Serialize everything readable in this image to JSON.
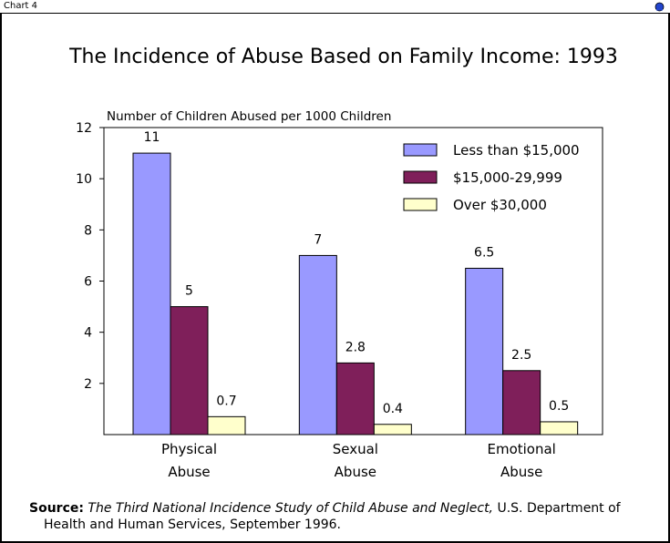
{
  "window": {
    "title": "Chart 4",
    "close_icon": "close-icon"
  },
  "chart_data": {
    "type": "bar",
    "title": "The Incidence of Abuse Based on Family Income: 1993",
    "ylabel": "Number of Children Abused per 1000 Children",
    "xlabel": "",
    "categories": [
      "Physical Abuse",
      "Sexual Abuse",
      "Emotional Abuse"
    ],
    "category_lines": [
      [
        "Physical",
        "Abuse"
      ],
      [
        "Sexual",
        "Abuse"
      ],
      [
        "Emotional",
        "Abuse"
      ]
    ],
    "series": [
      {
        "name": "Less than $15,000",
        "color": "#9999ff",
        "values": [
          11,
          7,
          6.5
        ],
        "labels": [
          "11",
          "7",
          "6.5"
        ]
      },
      {
        "name": "$15,000-29,999",
        "color": "#7f1f5a",
        "values": [
          5,
          2.8,
          2.5
        ],
        "labels": [
          "5",
          "2.8",
          "2.5"
        ]
      },
      {
        "name": "Over $30,000",
        "color": "#ffffcc",
        "values": [
          0.7,
          0.4,
          0.5
        ],
        "labels": [
          "0.7",
          "0.4",
          "0.5"
        ]
      }
    ],
    "ylim": [
      0,
      12
    ],
    "yticks": [
      2,
      4,
      6,
      8,
      10,
      12
    ],
    "grid": false,
    "legend_position": "top-right"
  },
  "source": {
    "label": "Source:",
    "title": "The Third National Incidence Study of Child Abuse and Neglect,",
    "rest_line1": " U.S. Department of",
    "rest_line2": "Health and Human Services, September 1996."
  }
}
